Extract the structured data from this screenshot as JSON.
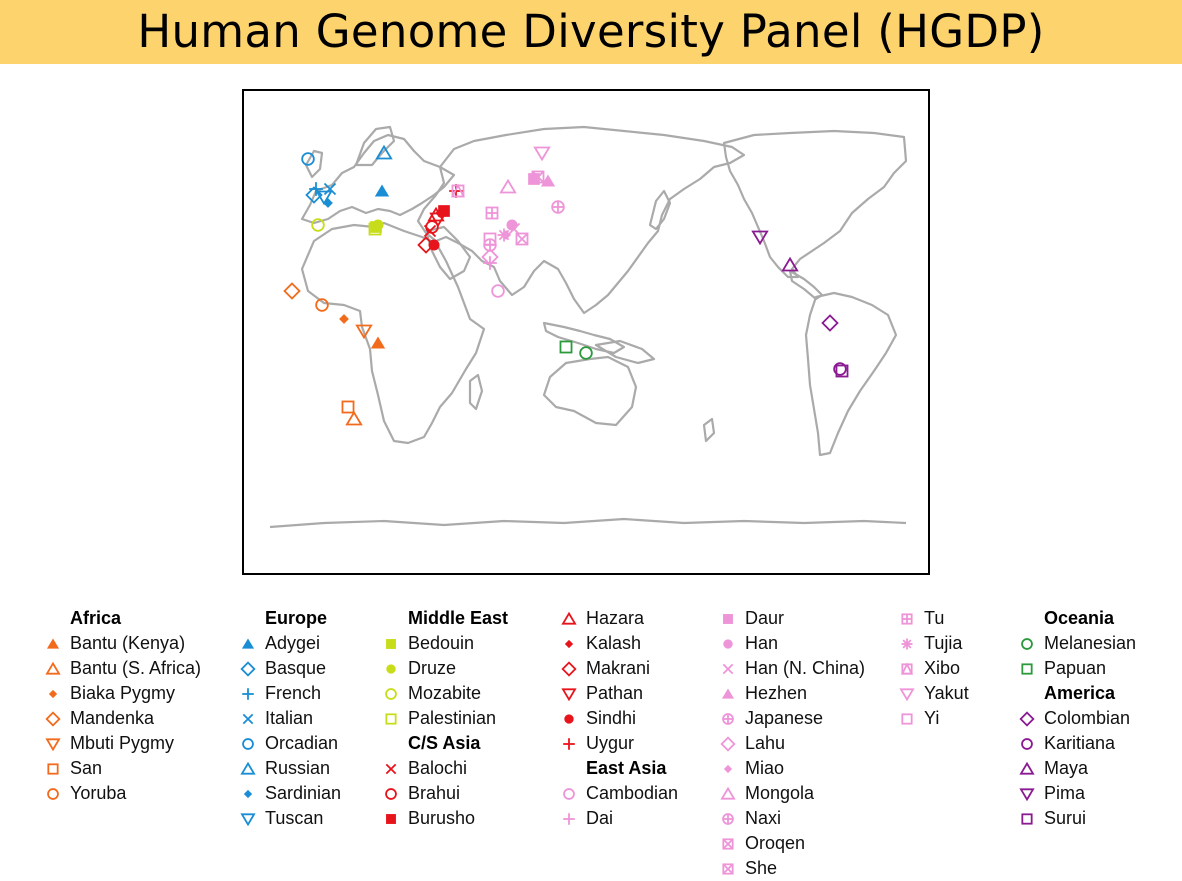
{
  "title": "Human Genome Diversity Panel (HGDP)",
  "colors": {
    "Africa": "#f26b1d",
    "Europe": "#1a8ed4",
    "Middle East": "#c8dd1a",
    "C/S Asia": "#e8141c",
    "East Asia": "#ee94d8",
    "Oceania": "#2a9a3a",
    "America": "#8a1a92"
  },
  "legend": [
    {
      "type": "header",
      "text": "Africa"
    },
    {
      "type": "item",
      "name": "Bantu (Kenya)",
      "region": "Africa",
      "marker": "triangle-filled"
    },
    {
      "type": "item",
      "name": "Bantu (S. Africa)",
      "region": "Africa",
      "marker": "triangle"
    },
    {
      "type": "item",
      "name": "Biaka Pygmy",
      "region": "Africa",
      "marker": "diamond-filled"
    },
    {
      "type": "item",
      "name": "Mandenka",
      "region": "Africa",
      "marker": "diamond"
    },
    {
      "type": "item",
      "name": "Mbuti Pygmy",
      "region": "Africa",
      "marker": "triangle-down"
    },
    {
      "type": "item",
      "name": "San",
      "region": "Africa",
      "marker": "square"
    },
    {
      "type": "item",
      "name": "Yoruba",
      "region": "Africa",
      "marker": "circle"
    },
    {
      "type": "header",
      "text": "Europe"
    },
    {
      "type": "item",
      "name": "Adygei",
      "region": "Europe",
      "marker": "triangle-filled"
    },
    {
      "type": "item",
      "name": "Basque",
      "region": "Europe",
      "marker": "diamond"
    },
    {
      "type": "item",
      "name": "French",
      "region": "Europe",
      "marker": "plus"
    },
    {
      "type": "item",
      "name": "Italian",
      "region": "Europe",
      "marker": "cross"
    },
    {
      "type": "item",
      "name": "Orcadian",
      "region": "Europe",
      "marker": "circle"
    },
    {
      "type": "item",
      "name": "Russian",
      "region": "Europe",
      "marker": "triangle"
    },
    {
      "type": "item",
      "name": "Sardinian",
      "region": "Europe",
      "marker": "diamond-filled"
    },
    {
      "type": "item",
      "name": "Tuscan",
      "region": "Europe",
      "marker": "triangle-down"
    },
    {
      "type": "header",
      "text": "Middle East"
    },
    {
      "type": "item",
      "name": "Bedouin",
      "region": "Middle East",
      "marker": "square-filled"
    },
    {
      "type": "item",
      "name": "Druze",
      "region": "Middle East",
      "marker": "circle-filled"
    },
    {
      "type": "item",
      "name": "Mozabite",
      "region": "Middle East",
      "marker": "circle"
    },
    {
      "type": "item",
      "name": "Palestinian",
      "region": "Middle East",
      "marker": "square"
    },
    {
      "type": "header",
      "text": "C/S Asia"
    },
    {
      "type": "item",
      "name": "Balochi",
      "region": "C/S Asia",
      "marker": "cross"
    },
    {
      "type": "item",
      "name": "Brahui",
      "region": "C/S Asia",
      "marker": "circle"
    },
    {
      "type": "item",
      "name": "Burusho",
      "region": "C/S Asia",
      "marker": "square-filled"
    },
    {
      "type": "item",
      "name": "Hazara",
      "region": "C/S Asia",
      "marker": "triangle"
    },
    {
      "type": "item",
      "name": "Kalash",
      "region": "C/S Asia",
      "marker": "diamond-filled"
    },
    {
      "type": "item",
      "name": "Makrani",
      "region": "C/S Asia",
      "marker": "diamond"
    },
    {
      "type": "item",
      "name": "Pathan",
      "region": "C/S Asia",
      "marker": "triangle-down"
    },
    {
      "type": "item",
      "name": "Sindhi",
      "region": "C/S Asia",
      "marker": "circle-filled"
    },
    {
      "type": "item",
      "name": "Uygur",
      "region": "C/S Asia",
      "marker": "plus"
    },
    {
      "type": "header",
      "text": "East Asia"
    },
    {
      "type": "item",
      "name": "Cambodian",
      "region": "East Asia",
      "marker": "circle"
    },
    {
      "type": "item",
      "name": "Dai",
      "region": "East Asia",
      "marker": "plus"
    },
    {
      "type": "item",
      "name": "Daur",
      "region": "East Asia",
      "marker": "square-filled"
    },
    {
      "type": "item",
      "name": "Han",
      "region": "East Asia",
      "marker": "circle-filled"
    },
    {
      "type": "item",
      "name": "Han (N. China)",
      "region": "East Asia",
      "marker": "cross"
    },
    {
      "type": "item",
      "name": "Hezhen",
      "region": "East Asia",
      "marker": "triangle-filled"
    },
    {
      "type": "item",
      "name": "Japanese",
      "region": "East Asia",
      "marker": "circle-plus"
    },
    {
      "type": "item",
      "name": "Lahu",
      "region": "East Asia",
      "marker": "diamond"
    },
    {
      "type": "item",
      "name": "Miao",
      "region": "East Asia",
      "marker": "diamond-filled"
    },
    {
      "type": "item",
      "name": "Mongola",
      "region": "East Asia",
      "marker": "triangle"
    },
    {
      "type": "item",
      "name": "Naxi",
      "region": "East Asia",
      "marker": "circle-plus"
    },
    {
      "type": "item",
      "name": "Oroqen",
      "region": "East Asia",
      "marker": "square-cross"
    },
    {
      "type": "item",
      "name": "She",
      "region": "East Asia",
      "marker": "square-cross"
    },
    {
      "type": "item",
      "name": "Tu",
      "region": "East Asia",
      "marker": "square-plus"
    },
    {
      "type": "item",
      "name": "Tujia",
      "region": "East Asia",
      "marker": "asterisk"
    },
    {
      "type": "item",
      "name": "Xibo",
      "region": "East Asia",
      "marker": "square-triangle"
    },
    {
      "type": "item",
      "name": "Yakut",
      "region": "East Asia",
      "marker": "triangle-down"
    },
    {
      "type": "item",
      "name": "Yi",
      "region": "East Asia",
      "marker": "square"
    },
    {
      "type": "header",
      "text": "Oceania"
    },
    {
      "type": "item",
      "name": "Melanesian",
      "region": "Oceania",
      "marker": "circle"
    },
    {
      "type": "item",
      "name": "Papuan",
      "region": "Oceania",
      "marker": "square"
    },
    {
      "type": "header",
      "text": "America"
    },
    {
      "type": "item",
      "name": "Colombian",
      "region": "America",
      "marker": "diamond"
    },
    {
      "type": "item",
      "name": "Karitiana",
      "region": "America",
      "marker": "circle"
    },
    {
      "type": "item",
      "name": "Maya",
      "region": "America",
      "marker": "triangle"
    },
    {
      "type": "item",
      "name": "Pima",
      "region": "America",
      "marker": "triangle-down"
    },
    {
      "type": "item",
      "name": "Surui",
      "region": "America",
      "marker": "square"
    }
  ]
}
